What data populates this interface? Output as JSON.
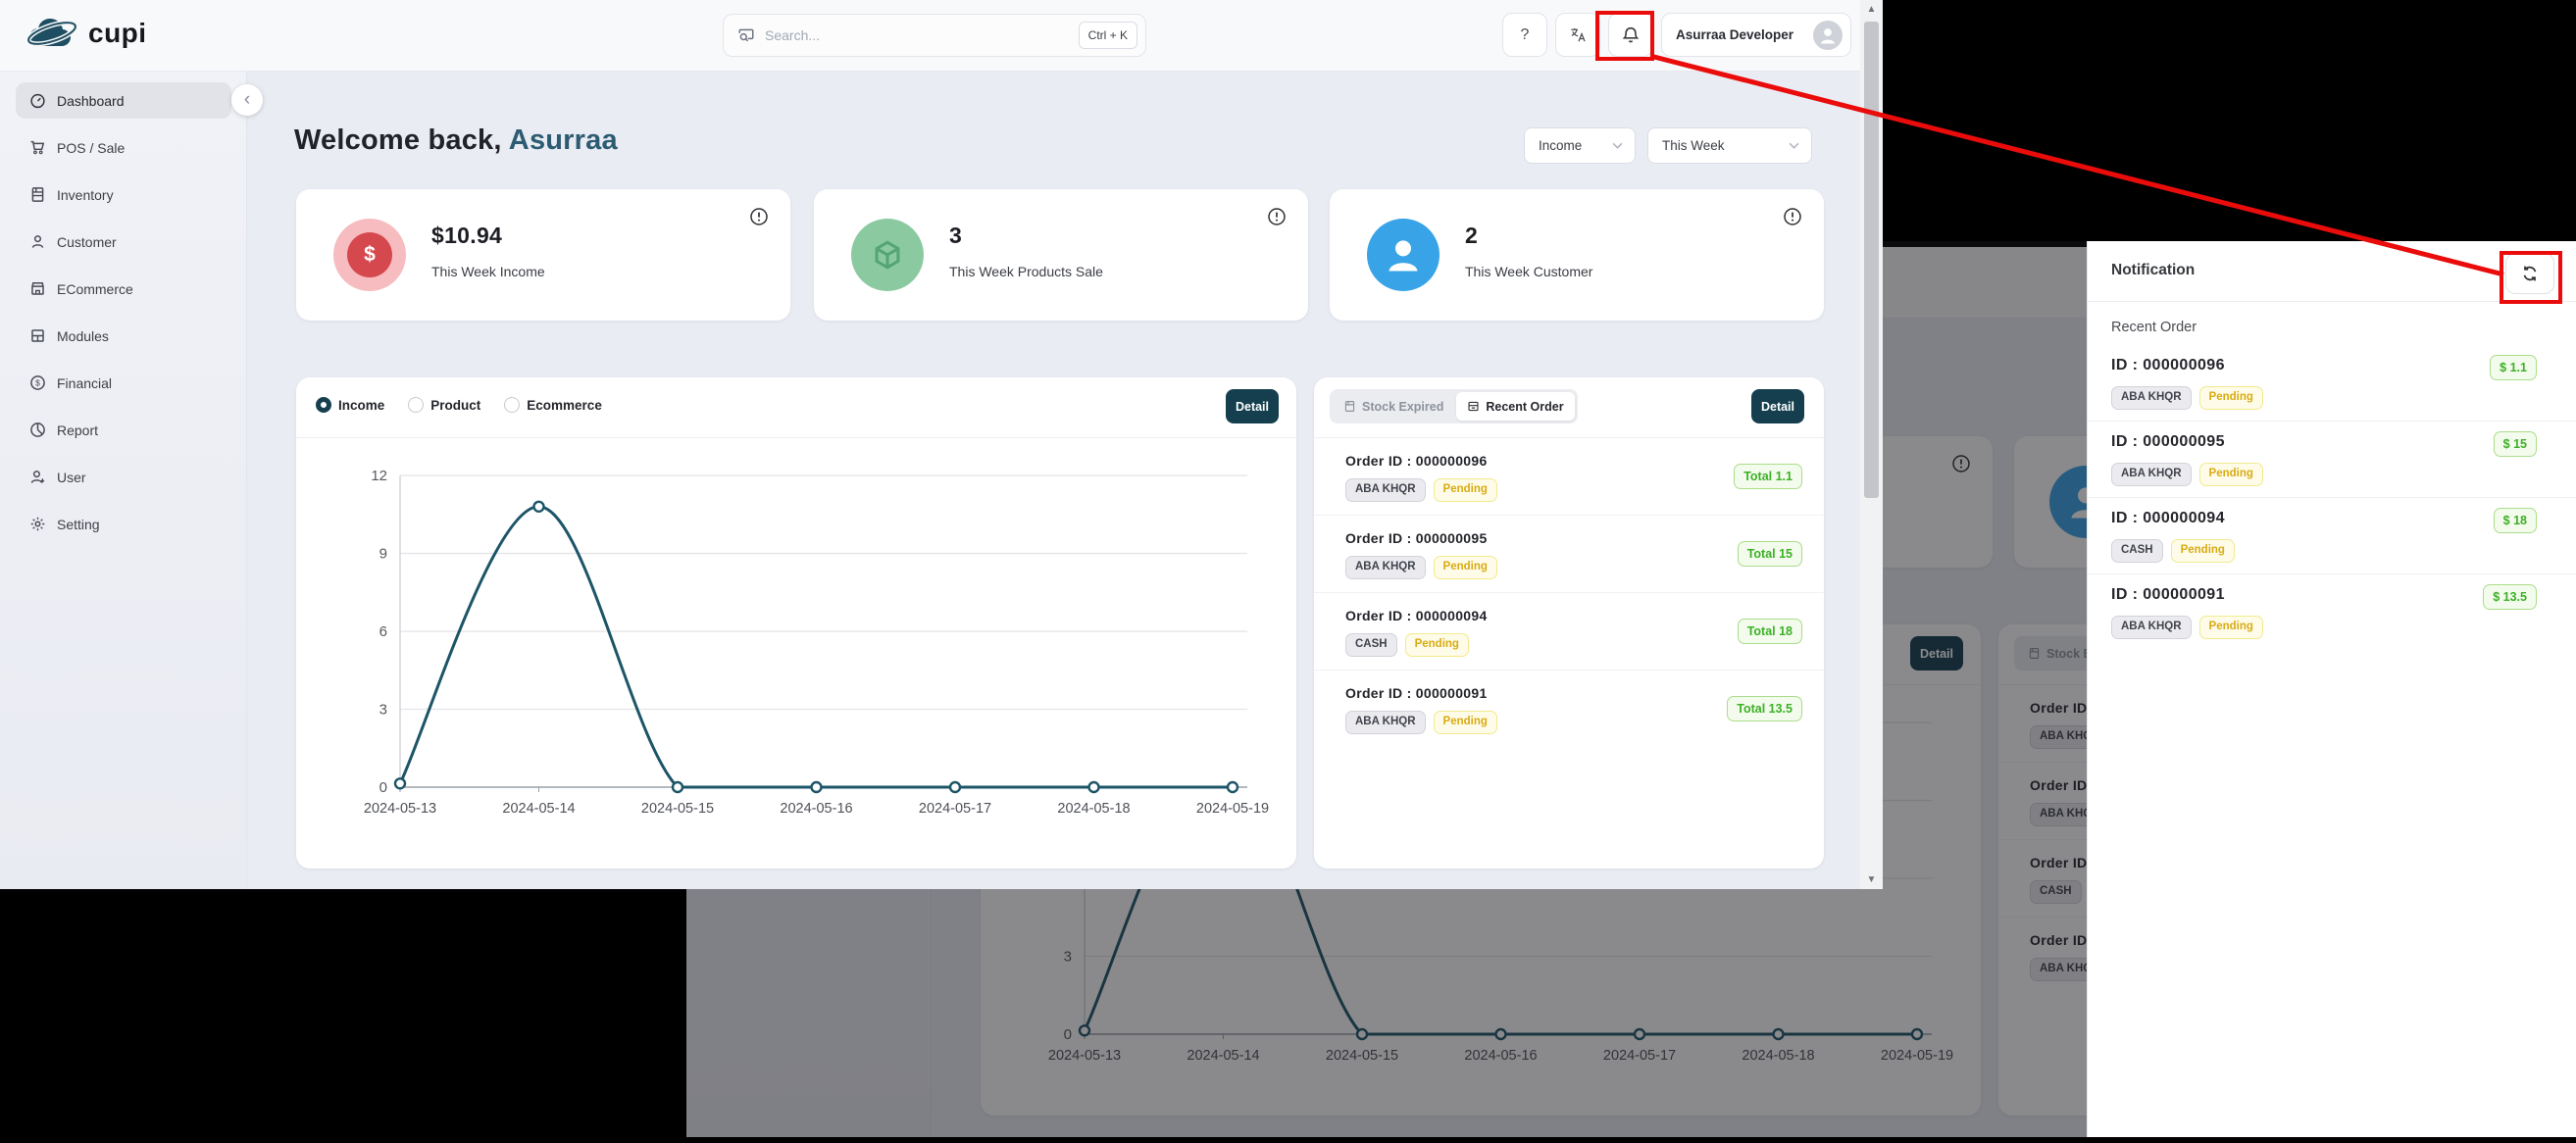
{
  "brand": {
    "name": "cupi"
  },
  "topbar": {
    "search_placeholder": "Search...",
    "search_kbd": "Ctrl + K",
    "help_label": "?",
    "user_name": "Asurraa Developer"
  },
  "sidebar": {
    "items": [
      {
        "label": "Dashboard",
        "icon": "gauge-icon",
        "active": true
      },
      {
        "label": "POS / Sale",
        "icon": "cart-icon",
        "active": false
      },
      {
        "label": "Inventory",
        "icon": "inventory-icon",
        "active": false
      },
      {
        "label": "Customer",
        "icon": "customer-icon",
        "active": false
      },
      {
        "label": "ECommerce",
        "icon": "storefront-icon",
        "active": false
      },
      {
        "label": "Modules",
        "icon": "modules-icon",
        "active": false
      },
      {
        "label": "Financial",
        "icon": "dollar-circle-icon",
        "active": false
      },
      {
        "label": "Report",
        "icon": "pie-chart-icon",
        "active": false
      },
      {
        "label": "User",
        "icon": "user-icon",
        "active": false
      },
      {
        "label": "Setting",
        "icon": "gear-icon",
        "active": false
      }
    ]
  },
  "page": {
    "welcome_prefix": "Welcome back,",
    "welcome_name": "Asurraa",
    "filters": {
      "metric": "Income",
      "range": "This Week"
    }
  },
  "stats": [
    {
      "value": "$10.94",
      "label": "This Week Income",
      "icon": "dollar-badge-icon"
    },
    {
      "value": "3",
      "label": "This Week Products Sale",
      "icon": "cube-icon"
    },
    {
      "value": "2",
      "label": "This Week Customer",
      "icon": "person-icon"
    }
  ],
  "chart_card": {
    "radios": [
      "Income",
      "Product",
      "Ecommerce"
    ],
    "selected": "Income",
    "detail_label": "Detail"
  },
  "chart_data": {
    "type": "line",
    "title": "",
    "xlabel": "",
    "ylabel": "",
    "categories": [
      "2024-05-13",
      "2024-05-14",
      "2024-05-15",
      "2024-05-16",
      "2024-05-17",
      "2024-05-18",
      "2024-05-19"
    ],
    "series": [
      {
        "name": "Income",
        "values": [
          0.14,
          10.8,
          0,
          0,
          0,
          0,
          0
        ]
      }
    ],
    "ylim": [
      0,
      12
    ],
    "yticks": [
      0,
      3,
      6,
      9,
      12
    ],
    "grid": true,
    "legend_position": "none",
    "line_color": "#1d5568"
  },
  "orders_card": {
    "tabs": [
      {
        "label": "Stock Expired",
        "active": false
      },
      {
        "label": "Recent Order",
        "active": true
      }
    ],
    "detail_label": "Detail"
  },
  "orders": [
    {
      "id": "000000096",
      "method": "ABA KHQR",
      "status": "Pending",
      "total": "1.1"
    },
    {
      "id": "000000095",
      "method": "ABA KHQR",
      "status": "Pending",
      "total": "15"
    },
    {
      "id": "000000094",
      "method": "CASH",
      "status": "Pending",
      "total": "18"
    },
    {
      "id": "000000091",
      "method": "ABA KHQR",
      "status": "Pending",
      "total": "13.5"
    }
  ],
  "labels": {
    "order_id_prefix": "Order ID : ",
    "id_prefix": "ID : ",
    "total_prefix": "Total ",
    "dollar_prefix": "$ "
  },
  "notification": {
    "title": "Notification",
    "section": "Recent Order"
  },
  "colors": {
    "accent_teal": "#16404f",
    "chart_line": "#1d5568",
    "annotation_red": "#ea0b0b",
    "pending_yellow": "#d9ab15",
    "success_green": "#3db028",
    "income_pink": "#d5484e",
    "product_green": "#7ec79a",
    "customer_blue": "#38a3e7"
  }
}
